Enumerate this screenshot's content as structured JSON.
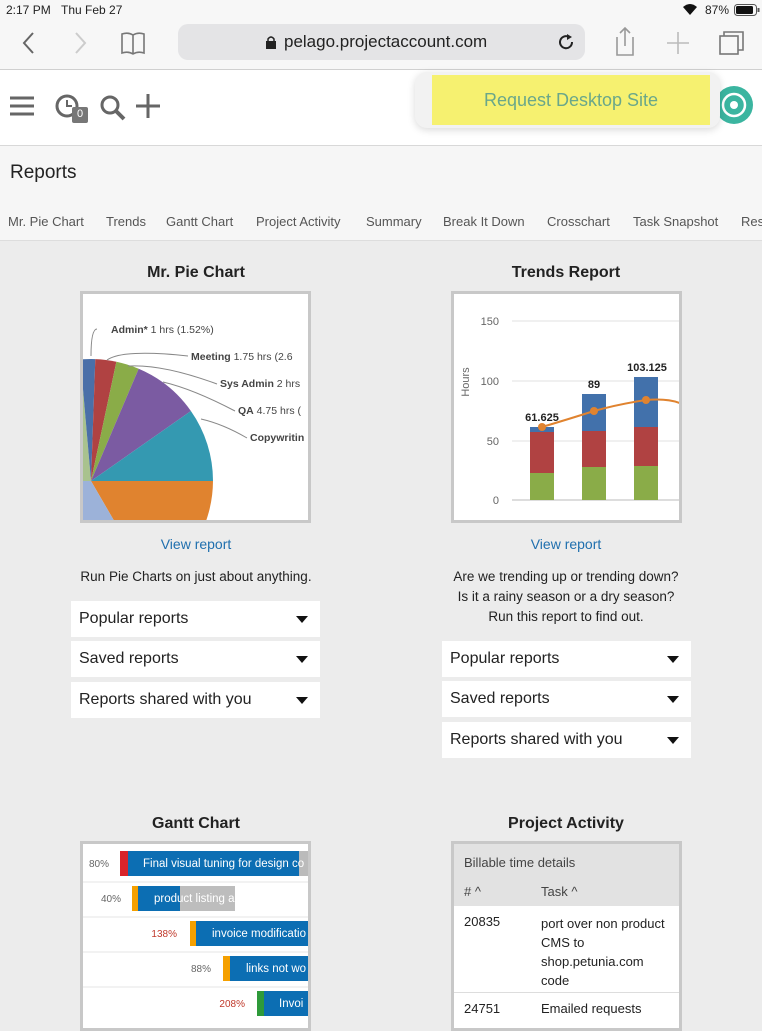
{
  "status_bar": {
    "time": "2:17 PM",
    "date": "Thu Feb 27",
    "battery": "87%"
  },
  "browser": {
    "url": "pelago.projectaccount.com",
    "popup": "Request Desktop Site"
  },
  "app_header": {
    "badge": "0"
  },
  "page": {
    "title": "Reports",
    "tabs": [
      "Mr. Pie Chart",
      "Trends",
      "Gantt Chart",
      "Project Activity",
      "Summary",
      "Break It Down",
      "Crosschart",
      "Task Snapshot",
      "Res"
    ]
  },
  "cards": [
    {
      "title": "Mr. Pie Chart",
      "link": "View report",
      "description": [
        "Run Pie Charts on just about anything."
      ],
      "dropdowns": [
        "Popular reports",
        "Saved reports",
        "Reports shared with you"
      ],
      "thumbnail": {
        "labels": [
          {
            "name": "Admin*",
            "detail": "1 hrs (1.52%)"
          },
          {
            "name": "Meeting",
            "detail": "1.75 hrs (2.6"
          },
          {
            "name": "Sys Admin",
            "detail": "2 hrs"
          },
          {
            "name": "QA",
            "detail": "4.75 hrs ("
          },
          {
            "name": "Copywritin",
            "detail": null
          }
        ]
      }
    },
    {
      "title": "Trends Report",
      "link": "View report",
      "description": [
        "Are we trending up or trending down?",
        "Is it a rainy season or a dry season?",
        "Run this report to find out."
      ],
      "dropdowns": [
        "Popular reports",
        "Saved reports",
        "Reports shared with you"
      ],
      "thumbnail": {
        "axis_label": "Hours",
        "ticks": [
          "150",
          "100",
          "50",
          "0"
        ],
        "totals": [
          "61.625",
          "89",
          "103.125"
        ]
      }
    },
    {
      "title": "Gantt Chart",
      "thumbnail": {
        "rows": [
          {
            "percent": "80%",
            "task": "Final visual tuning for design co"
          },
          {
            "percent": "40%",
            "task": "product listing a"
          },
          {
            "percent": "138%",
            "task": "invoice modificatio"
          },
          {
            "percent": "88%",
            "task": "links not wo"
          },
          {
            "percent": "208%",
            "task": "Invoi"
          }
        ]
      }
    },
    {
      "title": "Project Activity",
      "thumbnail": {
        "caption": "Billable time details",
        "columns": [
          "#",
          "Task"
        ],
        "rows": [
          [
            "20835",
            "port over non product CMS to shop.petunia.com code"
          ],
          [
            "24751",
            "Emailed requests"
          ]
        ]
      }
    }
  ]
}
